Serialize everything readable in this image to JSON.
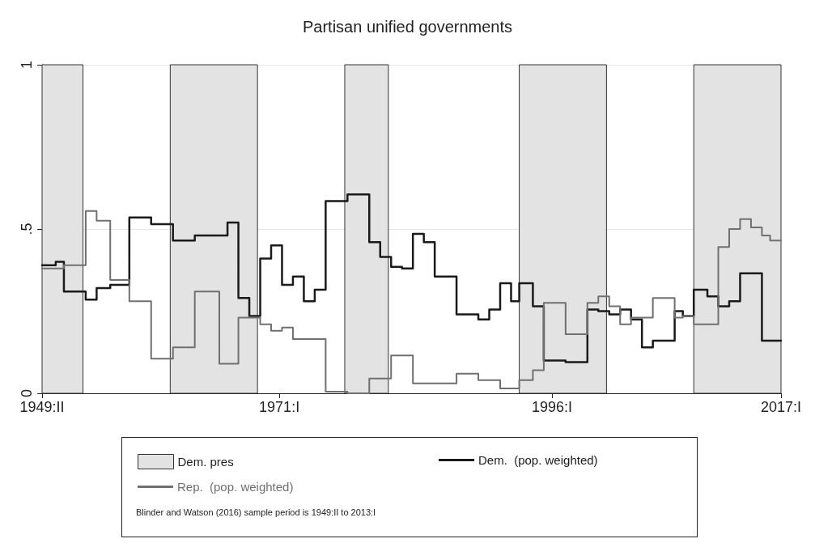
{
  "chart_data": {
    "type": "step",
    "title": "Partisan unified governments",
    "xlim": [
      1949.25,
      2017.0
    ],
    "xticks": [
      {
        "value": 1949.25,
        "label": "1949:II"
      },
      {
        "value": 1971.0,
        "label": "1971:I"
      },
      {
        "value": 1996.0,
        "label": "1996:I"
      },
      {
        "value": 2017.0,
        "label": "2017:I"
      }
    ],
    "ylim": [
      0,
      1
    ],
    "yticks": [
      0,
      {
        "value": 0.5,
        "label": ".5"
      },
      1
    ],
    "grid": "y",
    "legend": "bottom",
    "line_style": "solid",
    "marker": "none",
    "bands": [
      {
        "axis": "x",
        "from": 1949.25,
        "to": 1953.0,
        "label": "Dem. pres",
        "color": "#e3e3e3"
      },
      {
        "axis": "x",
        "from": 1961.0,
        "to": 1969.0,
        "color": "#e3e3e3"
      },
      {
        "axis": "x",
        "from": 1977.0,
        "to": 1981.0,
        "color": "#e3e3e3"
      },
      {
        "axis": "x",
        "from": 1993.0,
        "to": 2001.0,
        "color": "#e3e3e3"
      },
      {
        "axis": "x",
        "from": 2009.0,
        "to": 2017.0,
        "color": "#e3e3e3"
      }
    ],
    "series": [
      {
        "name": "Dem.  (pop. weighted)",
        "color": "#1a1a1a",
        "x": [
          1949.25,
          1950.5,
          1951.25,
          1953.25,
          1954.25,
          1955.5,
          1957.25,
          1959.25,
          1961.25,
          1963.25,
          1966.25,
          1967.25,
          1968.25,
          1969.25,
          1970.25,
          1971.25,
          1972.25,
          1973.25,
          1974.25,
          1975.25,
          1977.25,
          1979.25,
          1980.25,
          1981.25,
          1982.25,
          1983.25,
          1984.25,
          1985.25,
          1987.25,
          1989.25,
          1990.25,
          1991.25,
          1992.25,
          1993.0,
          1994.25,
          1995.25,
          1997.25,
          1999.25,
          2000.25,
          2001.25,
          2002.25,
          2003.25,
          2004.25,
          2005.25,
          2007.25,
          2008.0,
          2009.0,
          2010.25,
          2011.25,
          2012.25,
          2013.25,
          2015.25,
          2017.0
        ],
        "values": [
          0.39,
          0.4,
          0.31,
          0.285,
          0.32,
          0.33,
          0.535,
          0.515,
          0.465,
          0.48,
          0.52,
          0.29,
          0.235,
          0.41,
          0.45,
          0.33,
          0.355,
          0.28,
          0.315,
          0.585,
          0.605,
          0.46,
          0.415,
          0.385,
          0.38,
          0.485,
          0.46,
          0.355,
          0.24,
          0.225,
          0.255,
          0.335,
          0.28,
          0.335,
          0.265,
          0.1,
          0.095,
          0.255,
          0.25,
          0.24,
          0.255,
          0.225,
          0.14,
          0.16,
          0.25,
          0.235,
          0.315,
          0.295,
          0.265,
          0.28,
          0.365,
          0.16,
          0.16
        ]
      },
      {
        "name": "Rep.  (pop. weighted)",
        "color": "#707070",
        "x": [
          1949.25,
          1951.25,
          1953.25,
          1954.25,
          1955.5,
          1957.25,
          1959.25,
          1961.25,
          1963.25,
          1965.5,
          1967.25,
          1969.25,
          1970.25,
          1971.25,
          1972.25,
          1975.25,
          1977.25,
          1979.25,
          1981.25,
          1983.25,
          1987.25,
          1989.25,
          1991.25,
          1993.0,
          1994.25,
          1995.25,
          1997.25,
          1999.25,
          2000.25,
          2001.25,
          2002.25,
          2003.25,
          2005.25,
          2007.25,
          2008.0,
          2009.0,
          2011.25,
          2012.25,
          2013.25,
          2014.25,
          2015.25,
          2016.0,
          2017.0
        ],
        "values": [
          0.38,
          0.39,
          0.555,
          0.525,
          0.345,
          0.28,
          0.105,
          0.14,
          0.31,
          0.09,
          0.23,
          0.21,
          0.19,
          0.2,
          0.165,
          0.005,
          0.0,
          0.045,
          0.115,
          0.03,
          0.06,
          0.04,
          0.015,
          0.04,
          0.07,
          0.275,
          0.18,
          0.275,
          0.295,
          0.265,
          0.21,
          0.23,
          0.29,
          0.23,
          0.235,
          0.21,
          0.445,
          0.5,
          0.53,
          0.505,
          0.48,
          0.465,
          0.465
        ]
      }
    ],
    "annotations": [
      "Blinder and Watson (2016) sample period is 1949:II to 2013:I"
    ]
  }
}
